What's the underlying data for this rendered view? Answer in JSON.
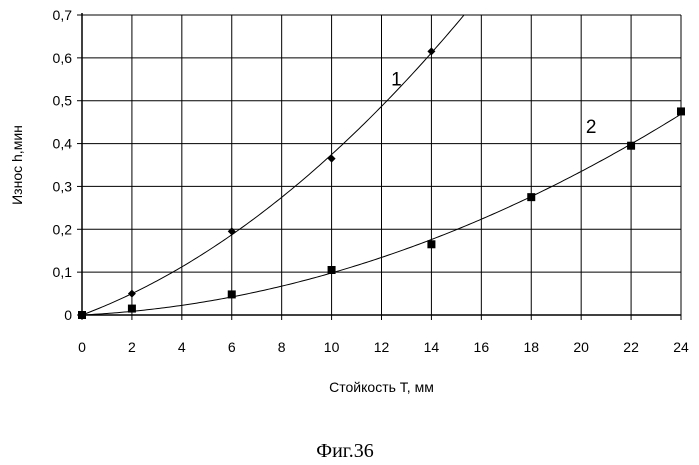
{
  "chart_data": {
    "type": "scatter",
    "xlabel": "Стойкость Т, мм",
    "ylabel": "Износ h,мин",
    "caption": "Фиг.36",
    "xlim": [
      0,
      24
    ],
    "ylim": [
      0,
      0.7
    ],
    "x_ticks": [
      "0",
      "2",
      "4",
      "6",
      "8",
      "10",
      "12",
      "14",
      "16",
      "18",
      "20",
      "22",
      "24"
    ],
    "y_ticks": [
      "0",
      "0,1",
      "0,2",
      "0,3",
      "0,4",
      "0,5",
      "0,6",
      "0,7"
    ],
    "grid": true,
    "series": [
      {
        "label": "1",
        "marker": "diamond",
        "x": [
          0,
          2,
          6,
          10,
          14
        ],
        "y": [
          0,
          0.05,
          0.195,
          0.365,
          0.615
        ]
      },
      {
        "label": "2",
        "marker": "square",
        "x": [
          0,
          2,
          6,
          10,
          14,
          18,
          22,
          24
        ],
        "y": [
          0,
          0.015,
          0.048,
          0.105,
          0.165,
          0.275,
          0.395,
          0.475
        ]
      }
    ]
  }
}
